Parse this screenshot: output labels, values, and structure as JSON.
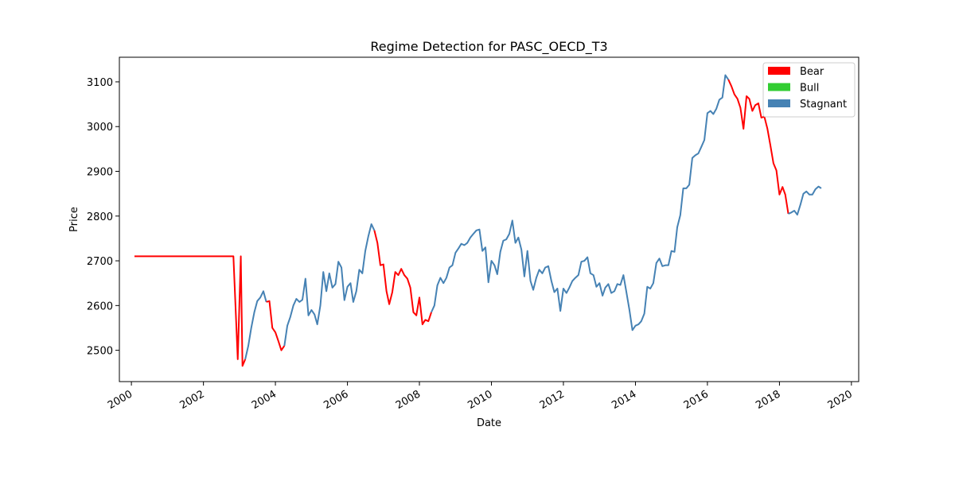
{
  "chart_data": {
    "type": "line",
    "title": "Regime Detection for PASC_OECD_T3",
    "xlabel": "Date",
    "ylabel": "Price",
    "xlim": [
      "1999-09-01",
      "2020-03-15"
    ],
    "ylim": [
      2430,
      3155
    ],
    "x_ticks": [
      "2000",
      "2002",
      "2004",
      "2006",
      "2008",
      "2010",
      "2012",
      "2014",
      "2016",
      "2018",
      "2020"
    ],
    "y_ticks": [
      2500,
      2600,
      2700,
      2800,
      2900,
      3000,
      3100
    ],
    "grid": false,
    "legend_position": "top-right",
    "legend": [
      {
        "label": "Bear",
        "color": "#ff0000"
      },
      {
        "label": "Bull",
        "color": "#32cd32"
      },
      {
        "label": "Stagnant",
        "color": "#4682b4"
      }
    ],
    "segments": [
      {
        "regime": "Bear",
        "color": "#ff0000",
        "points": [
          [
            "2000-02-01",
            2710
          ],
          [
            "2002-11-01",
            2710
          ],
          [
            "2002-12-15",
            2480
          ],
          [
            "2003-01-15",
            2710
          ],
          [
            "2003-02-01",
            2465
          ],
          [
            "2003-03-01",
            2480
          ]
        ]
      },
      {
        "regime": "Stagnant",
        "color": "#4682b4",
        "points": [
          [
            "2003-03-01",
            2480
          ],
          [
            "2003-04-01",
            2510
          ],
          [
            "2003-05-01",
            2550
          ],
          [
            "2003-06-01",
            2585
          ],
          [
            "2003-07-01",
            2610
          ],
          [
            "2003-08-01",
            2618
          ],
          [
            "2003-09-01",
            2632
          ],
          [
            "2003-10-01",
            2608
          ]
        ]
      },
      {
        "regime": "Bear",
        "color": "#ff0000",
        "points": [
          [
            "2003-10-01",
            2608
          ],
          [
            "2003-11-01",
            2610
          ],
          [
            "2003-12-01",
            2550
          ],
          [
            "2004-01-01",
            2540
          ],
          [
            "2004-02-01",
            2520
          ],
          [
            "2004-03-01",
            2500
          ],
          [
            "2004-04-01",
            2510
          ]
        ]
      },
      {
        "regime": "Stagnant",
        "color": "#4682b4",
        "points": [
          [
            "2004-04-01",
            2510
          ],
          [
            "2004-05-01",
            2555
          ],
          [
            "2004-06-01",
            2575
          ],
          [
            "2004-07-01",
            2600
          ],
          [
            "2004-08-01",
            2615
          ],
          [
            "2004-09-01",
            2608
          ],
          [
            "2004-10-01",
            2613
          ],
          [
            "2004-11-01",
            2660
          ],
          [
            "2004-12-01",
            2578
          ],
          [
            "2005-01-01",
            2590
          ],
          [
            "2005-02-01",
            2580
          ],
          [
            "2005-03-01",
            2558
          ],
          [
            "2005-04-01",
            2600
          ],
          [
            "2005-05-01",
            2675
          ],
          [
            "2005-06-01",
            2632
          ],
          [
            "2005-07-01",
            2672
          ],
          [
            "2005-08-01",
            2640
          ],
          [
            "2005-09-01",
            2648
          ],
          [
            "2005-10-01",
            2698
          ],
          [
            "2005-11-01",
            2685
          ],
          [
            "2005-12-01",
            2612
          ],
          [
            "2006-01-01",
            2642
          ],
          [
            "2006-02-01",
            2650
          ],
          [
            "2006-03-01",
            2608
          ],
          [
            "2006-04-01",
            2632
          ],
          [
            "2006-05-01",
            2680
          ],
          [
            "2006-06-01",
            2672
          ],
          [
            "2006-07-01",
            2722
          ],
          [
            "2006-08-01",
            2755
          ],
          [
            "2006-09-01",
            2782
          ],
          [
            "2006-10-01",
            2768
          ]
        ]
      },
      {
        "regime": "Bear",
        "color": "#ff0000",
        "points": [
          [
            "2006-10-01",
            2768
          ],
          [
            "2006-11-01",
            2740
          ],
          [
            "2006-12-01",
            2690
          ],
          [
            "2007-01-01",
            2692
          ],
          [
            "2007-02-01",
            2632
          ],
          [
            "2007-03-01",
            2603
          ],
          [
            "2007-04-01",
            2630
          ],
          [
            "2007-05-01",
            2675
          ],
          [
            "2007-06-01",
            2668
          ],
          [
            "2007-07-01",
            2682
          ],
          [
            "2007-08-01",
            2668
          ],
          [
            "2007-09-01",
            2660
          ],
          [
            "2007-10-01",
            2640
          ],
          [
            "2007-11-01",
            2585
          ],
          [
            "2007-12-01",
            2578
          ],
          [
            "2008-01-01",
            2618
          ],
          [
            "2008-02-01",
            2558
          ],
          [
            "2008-03-01",
            2568
          ],
          [
            "2008-04-01",
            2565
          ],
          [
            "2008-05-01",
            2585
          ]
        ]
      },
      {
        "regime": "Stagnant",
        "color": "#4682b4",
        "points": [
          [
            "2008-05-01",
            2585
          ],
          [
            "2008-06-01",
            2600
          ],
          [
            "2008-07-01",
            2645
          ],
          [
            "2008-08-01",
            2662
          ],
          [
            "2008-09-01",
            2650
          ],
          [
            "2008-10-01",
            2662
          ],
          [
            "2008-11-01",
            2685
          ],
          [
            "2008-12-01",
            2690
          ],
          [
            "2009-01-01",
            2718
          ],
          [
            "2009-02-01",
            2728
          ],
          [
            "2009-03-01",
            2738
          ],
          [
            "2009-04-01",
            2735
          ],
          [
            "2009-05-01",
            2740
          ],
          [
            "2009-06-01",
            2752
          ],
          [
            "2009-07-01",
            2760
          ],
          [
            "2009-08-01",
            2768
          ],
          [
            "2009-09-01",
            2770
          ],
          [
            "2009-10-01",
            2722
          ],
          [
            "2009-11-01",
            2730
          ],
          [
            "2009-12-01",
            2652
          ],
          [
            "2010-01-01",
            2700
          ],
          [
            "2010-02-01",
            2690
          ],
          [
            "2010-03-01",
            2670
          ],
          [
            "2010-04-01",
            2720
          ],
          [
            "2010-05-01",
            2745
          ],
          [
            "2010-06-01",
            2748
          ],
          [
            "2010-07-01",
            2760
          ],
          [
            "2010-08-01",
            2790
          ],
          [
            "2010-09-01",
            2740
          ],
          [
            "2010-10-01",
            2752
          ],
          [
            "2010-11-01",
            2725
          ],
          [
            "2010-12-01",
            2665
          ],
          [
            "2011-01-01",
            2722
          ],
          [
            "2011-02-01",
            2655
          ],
          [
            "2011-03-01",
            2635
          ],
          [
            "2011-04-01",
            2662
          ],
          [
            "2011-05-01",
            2680
          ],
          [
            "2011-06-01",
            2672
          ],
          [
            "2011-07-01",
            2685
          ],
          [
            "2011-08-01",
            2688
          ],
          [
            "2011-09-01",
            2655
          ],
          [
            "2011-10-01",
            2630
          ],
          [
            "2011-11-01",
            2638
          ],
          [
            "2011-12-01",
            2588
          ],
          [
            "2012-01-01",
            2638
          ],
          [
            "2012-02-01",
            2628
          ],
          [
            "2012-03-01",
            2640
          ],
          [
            "2012-04-01",
            2655
          ],
          [
            "2012-05-01",
            2662
          ],
          [
            "2012-06-01",
            2668
          ],
          [
            "2012-07-01",
            2698
          ],
          [
            "2012-08-01",
            2700
          ],
          [
            "2012-09-01",
            2708
          ],
          [
            "2012-10-01",
            2672
          ],
          [
            "2012-11-01",
            2668
          ],
          [
            "2012-12-01",
            2642
          ],
          [
            "2013-01-01",
            2650
          ],
          [
            "2013-02-01",
            2622
          ],
          [
            "2013-03-01",
            2640
          ],
          [
            "2013-04-01",
            2648
          ],
          [
            "2013-05-01",
            2628
          ],
          [
            "2013-06-01",
            2632
          ],
          [
            "2013-07-01",
            2648
          ],
          [
            "2013-08-01",
            2646
          ],
          [
            "2013-09-01",
            2668
          ],
          [
            "2013-10-01",
            2630
          ],
          [
            "2013-11-01",
            2590
          ],
          [
            "2013-12-01",
            2545
          ],
          [
            "2014-01-01",
            2555
          ],
          [
            "2014-02-01",
            2558
          ],
          [
            "2014-03-01",
            2565
          ],
          [
            "2014-04-01",
            2582
          ],
          [
            "2014-05-01",
            2642
          ],
          [
            "2014-06-01",
            2638
          ],
          [
            "2014-07-01",
            2650
          ],
          [
            "2014-08-01",
            2695
          ],
          [
            "2014-09-01",
            2705
          ],
          [
            "2014-10-01",
            2688
          ],
          [
            "2014-11-01",
            2690
          ],
          [
            "2014-12-01",
            2690
          ],
          [
            "2015-01-01",
            2722
          ],
          [
            "2015-02-01",
            2720
          ],
          [
            "2015-03-01",
            2775
          ],
          [
            "2015-04-01",
            2802
          ],
          [
            "2015-05-01",
            2862
          ],
          [
            "2015-06-01",
            2862
          ],
          [
            "2015-07-01",
            2870
          ],
          [
            "2015-08-01",
            2930
          ],
          [
            "2015-09-01",
            2936
          ],
          [
            "2015-10-01",
            2940
          ],
          [
            "2015-11-01",
            2955
          ],
          [
            "2015-12-01",
            2970
          ],
          [
            "2016-01-01",
            3030
          ],
          [
            "2016-02-01",
            3035
          ],
          [
            "2016-03-01",
            3028
          ],
          [
            "2016-04-01",
            3040
          ],
          [
            "2016-05-01",
            3060
          ],
          [
            "2016-06-01",
            3065
          ],
          [
            "2016-07-01",
            3115
          ],
          [
            "2016-08-01",
            3105
          ]
        ]
      },
      {
        "regime": "Bear",
        "color": "#ff0000",
        "points": [
          [
            "2016-08-01",
            3105
          ],
          [
            "2016-09-01",
            3090
          ],
          [
            "2016-10-01",
            3072
          ],
          [
            "2016-11-01",
            3062
          ],
          [
            "2016-12-01",
            3042
          ],
          [
            "2017-01-01",
            2995
          ],
          [
            "2017-02-01",
            3068
          ],
          [
            "2017-03-01",
            3062
          ],
          [
            "2017-04-01",
            3035
          ],
          [
            "2017-05-01",
            3048
          ],
          [
            "2017-06-01",
            3052
          ],
          [
            "2017-07-01",
            3020
          ],
          [
            "2017-08-01",
            3022
          ],
          [
            "2017-09-01",
            2995
          ],
          [
            "2017-10-01",
            2958
          ],
          [
            "2017-11-01",
            2918
          ],
          [
            "2017-12-01",
            2902
          ],
          [
            "2018-01-01",
            2848
          ],
          [
            "2018-02-01",
            2865
          ],
          [
            "2018-03-01",
            2848
          ],
          [
            "2018-04-01",
            2805
          ]
        ]
      },
      {
        "regime": "Stagnant",
        "color": "#4682b4",
        "points": [
          [
            "2018-04-01",
            2805
          ],
          [
            "2018-05-01",
            2808
          ],
          [
            "2018-06-01",
            2812
          ],
          [
            "2018-07-01",
            2803
          ],
          [
            "2018-08-01",
            2825
          ],
          [
            "2018-09-01",
            2850
          ],
          [
            "2018-10-01",
            2855
          ],
          [
            "2018-11-01",
            2848
          ],
          [
            "2018-12-01",
            2848
          ],
          [
            "2019-01-01",
            2860
          ],
          [
            "2019-02-01",
            2866
          ],
          [
            "2019-03-01",
            2862
          ]
        ]
      }
    ]
  }
}
